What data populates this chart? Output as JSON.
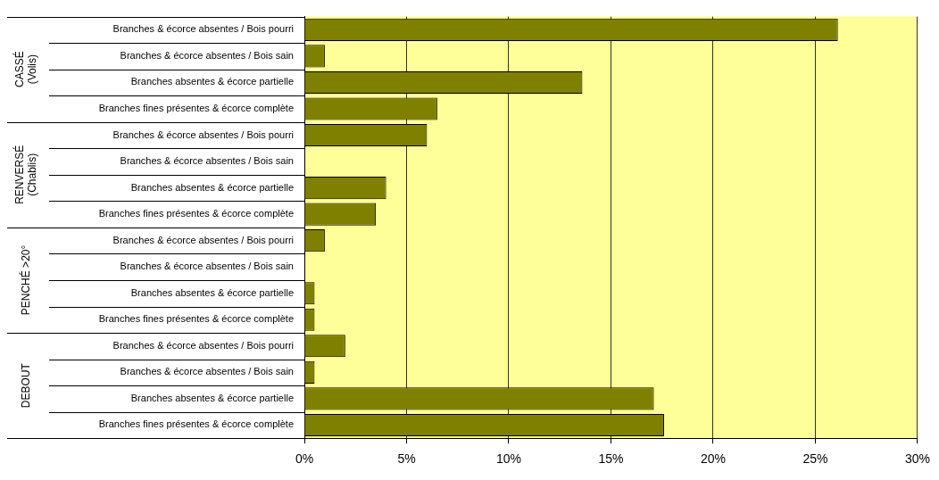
{
  "chart_data": {
    "type": "bar",
    "orientation": "horizontal",
    "categories": [
      "Branches & écorce absentes / Bois pourri",
      "Branches & écorce absentes / Bois sain",
      "Branches absentes & écorce partielle",
      "Branches fines présentes & écorce complète",
      "Branches & écorce absentes / Bois pourri",
      "Branches & écorce absentes / Bois sain",
      "Branches absentes & écorce partielle",
      "Branches fines présentes & écorce complète",
      "Branches & écorce absentes / Bois pourri",
      "Branches & écorce absentes / Bois sain",
      "Branches absentes & écorce partielle",
      "Branches fines présentes & écorce complète",
      "Branches & écorce absentes / Bois pourri",
      "Branches & écorce absentes / Bois sain",
      "Branches absentes & écorce partielle",
      "Branches fines présentes & écorce complète"
    ],
    "values": [
      26.1,
      1.0,
      13.6,
      6.5,
      6.0,
      0,
      4.0,
      3.5,
      1.0,
      0,
      0.5,
      0.5,
      2.0,
      0.5,
      17.1,
      17.6
    ],
    "color": "#808000",
    "xlim": [
      0,
      30
    ],
    "xticks": [
      {
        "value": 0,
        "label": "0%"
      },
      {
        "value": 5,
        "label": "5%"
      },
      {
        "value": 10,
        "label": "10%"
      },
      {
        "value": 15,
        "label": "15%"
      },
      {
        "value": 20,
        "label": "20%"
      },
      {
        "value": 25,
        "label": "25%"
      },
      {
        "value": 30,
        "label": "30%"
      }
    ],
    "grid": "x",
    "annotations": [
      "CASSÉ\n(Volis)",
      "RENVERSÉ\n(Chablis)",
      "PENCHÉ >20°",
      "DEBOUT"
    ]
  }
}
